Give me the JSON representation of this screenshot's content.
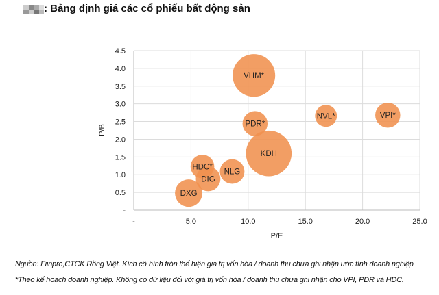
{
  "title": ": Bảng định giá các cổ phiếu bất động sản",
  "chart_data": {
    "type": "bubble",
    "xlabel": "P/E",
    "ylabel": "P/B",
    "xlim": [
      0,
      25
    ],
    "ylim": [
      0,
      4.5
    ],
    "x_ticks": [
      "-",
      "5.0",
      "10.0",
      "15.0",
      "20.0",
      "25.0"
    ],
    "x_tick_values": [
      0,
      5,
      10,
      15,
      20,
      25
    ],
    "y_ticks": [
      "-",
      "0.5",
      "1.0",
      "1.5",
      "2.0",
      "2.5",
      "3.0",
      "3.5",
      "4.0",
      "4.5"
    ],
    "y_tick_values": [
      0,
      0.5,
      1,
      1.5,
      2,
      2.5,
      3,
      3.5,
      4,
      4.5
    ],
    "grid": true,
    "bubble_color": "#F0914F",
    "series": [
      {
        "name": "VHM*",
        "x": 10.5,
        "y": 3.8,
        "size": 87
      },
      {
        "name": "PDR*",
        "x": 10.6,
        "y": 2.44,
        "size": 30
      },
      {
        "name": "KDH",
        "x": 11.8,
        "y": 1.6,
        "size": 100
      },
      {
        "name": "NVL*",
        "x": 16.8,
        "y": 2.66,
        "size": 23
      },
      {
        "name": "VPI*",
        "x": 22.2,
        "y": 2.68,
        "size": 30
      },
      {
        "name": "HDC*",
        "x": 6.0,
        "y": 1.23,
        "size": 27
      },
      {
        "name": "NLG",
        "x": 8.6,
        "y": 1.09,
        "size": 29
      },
      {
        "name": "DIG",
        "x": 6.5,
        "y": 0.88,
        "size": 29
      },
      {
        "name": "DXG",
        "x": 4.8,
        "y": 0.48,
        "size": 36
      }
    ]
  },
  "footnotes": [
    "Nguồn: Fiinpro,CTCK  Rồng Việt. Kích cỡ hình tròn thể hiện giá trị vốn hóa / doanh thu chưa ghi nhận ước tính doanh nghiệp",
    "*Theo kế hoạch doanh nghiệp. Không có dữ liệu đối với giá trị vốn hóa / doanh thu chưa ghi nhận cho VPI, PDR và HDC."
  ]
}
